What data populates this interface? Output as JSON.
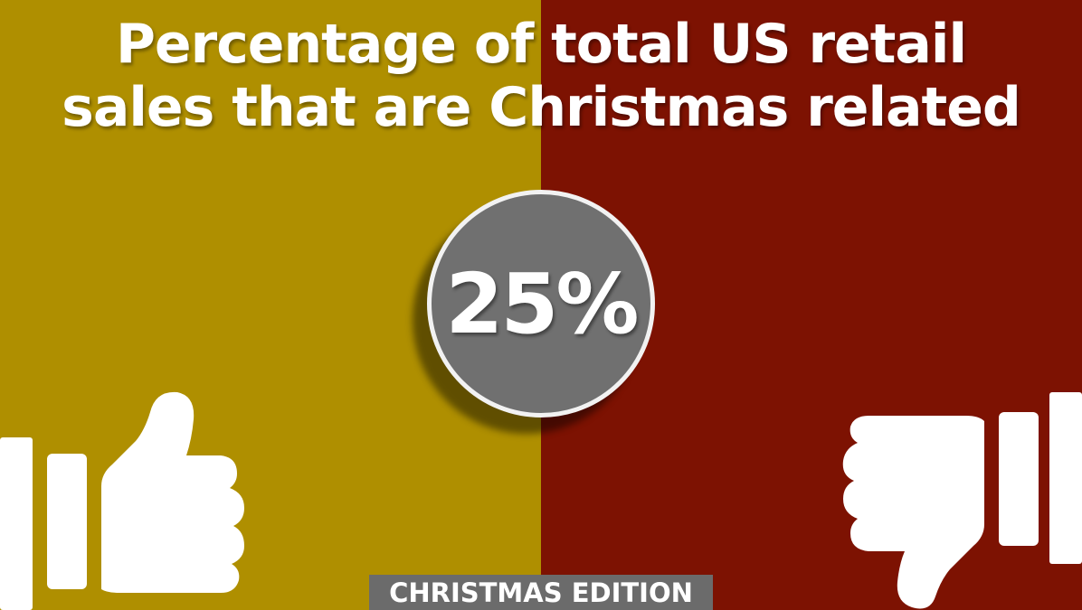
{
  "title": {
    "line1": "Percentage of total US retail",
    "line2": "sales that are Christmas related"
  },
  "stat": {
    "value": "25%"
  },
  "badge": {
    "label": "CHRISTMAS EDITION"
  },
  "icons": {
    "left": "thumbs-up-icon",
    "right": "thumbs-down-icon"
  },
  "colors": {
    "left_panel": "#af8f00",
    "right_panel": "#7d1202",
    "circle": "#707070",
    "badge": "#6b6b6b",
    "text": "#ffffff"
  }
}
